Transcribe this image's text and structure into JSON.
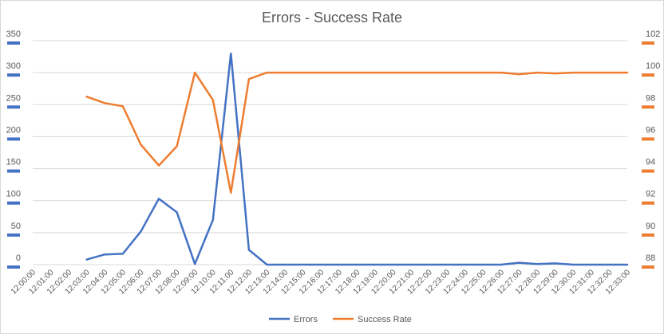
{
  "chart_data": {
    "type": "line",
    "title": "Errors - Success Rate",
    "categories": [
      "12:00:00",
      "12:01:00",
      "12:02:00",
      "12:03:00",
      "12:04:00",
      "12:05:00",
      "12:06:00",
      "12:07:00",
      "12:08:00",
      "12:09:00",
      "12:10:00",
      "12:11:00",
      "12:12:00",
      "12:13:00",
      "12:14:00",
      "12:15:00",
      "12:16:00",
      "12:17:00",
      "12:18:00",
      "12:19:00",
      "12:20:00",
      "12:21:00",
      "12:22:00",
      "12:23:00",
      "12:24:00",
      "12:25:00",
      "12:26:00",
      "12:27:00",
      "12:28:00",
      "12:29:00",
      "12:30:00",
      "12:31:00",
      "12:32:00",
      "12:33:00"
    ],
    "y_left": {
      "min": 0,
      "max": 350,
      "step": 50,
      "ticks": [
        "0",
        "50",
        "100",
        "150",
        "200",
        "250",
        "300",
        "350"
      ]
    },
    "y_right": {
      "min": 88,
      "max": 102,
      "step": 2,
      "ticks": [
        "88",
        "90",
        "92",
        "94",
        "96",
        "98",
        "100",
        "102"
      ]
    },
    "legend_position": "bottom",
    "grid": true,
    "series": [
      {
        "name": "Errors",
        "axis": "left",
        "color": "#4472C4",
        "values": [
          null,
          null,
          null,
          8,
          16,
          17,
          52,
          103,
          82,
          1,
          70,
          330,
          23,
          0,
          0,
          0,
          0,
          0,
          0,
          0,
          0,
          0,
          0,
          0,
          0,
          0,
          0,
          3,
          1,
          2,
          0,
          0,
          0,
          0
        ]
      },
      {
        "name": "Success Rate",
        "axis": "right",
        "color": "#ED7D31",
        "values": [
          null,
          null,
          null,
          98.5,
          98.1,
          97.9,
          95.5,
          94.2,
          95.4,
          100.0,
          98.3,
          92.5,
          99.6,
          100,
          100,
          100,
          100,
          100,
          100,
          100,
          100,
          100,
          100,
          100,
          100,
          100,
          100,
          99.9,
          100,
          99.95,
          100,
          100,
          100,
          100
        ]
      }
    ]
  }
}
